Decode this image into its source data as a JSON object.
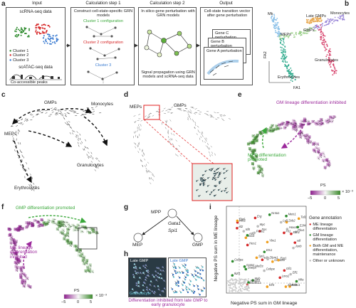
{
  "panel_a": {
    "label": "a",
    "headers": [
      "Input",
      "Calculation step 1",
      "Calculation step 2",
      "Output"
    ],
    "input_title": "scRNA-seq data",
    "clusters": [
      "Cluster 1",
      "Cluster 2",
      "Cluster 3"
    ],
    "cluster_colors": [
      "#2e8b2e",
      "#d62728",
      "#3b7bd1"
    ],
    "atac_title": "scATAC-seq data",
    "peaks_label": "Co-accessible peaks",
    "step1_title": "Construct cell-state-specific GRN models",
    "configs": [
      "Cluster 1 configuration",
      "Cluster 2 configuration",
      "Cluster 3"
    ],
    "step2_title": "In silico gene perturbation with GRN models",
    "step2_caption": "Signal propagation using GRN models and scRNA-seq data",
    "output_title": "Cell-state transition vector after gene perturbation",
    "perturbations": [
      "Gene C perturbation",
      "Gene B perturbation",
      "Gene A perturbation"
    ]
  },
  "panel_b": {
    "label": "b",
    "populations": [
      "Mk",
      "Late GMPs",
      "Monocytes",
      "MEPs",
      "GMPs",
      "Granulocytes",
      "Erythrocytes"
    ],
    "axis_x": "FA1",
    "axis_y": "FA2"
  },
  "panel_c": {
    "label": "c",
    "populations": [
      "GMPs",
      "Monocytes",
      "MEPs",
      "Granulocytes",
      "Erythrocytes"
    ]
  },
  "panel_d": {
    "label": "d",
    "populations": [
      "MEPs",
      "GMPs"
    ]
  },
  "panel_e": {
    "label": "e",
    "annotation_top": "GM lineage differentiation inhibited",
    "annotation_bottom": "MEP differentiation promoted",
    "ps_label": "PS",
    "ticks": [
      "−5",
      "0",
      "5"
    ],
    "exponent": "× 10⁻³"
  },
  "panel_f": {
    "label": "f",
    "annotation_top": "GMP differentiation promoted",
    "annotation_bottom": "ME lineage differentiation inhibited",
    "ps_label": "PS",
    "ticks": [
      "−5",
      "0",
      "5"
    ],
    "exponent": "× 10⁻³"
  },
  "panel_g": {
    "label": "g",
    "root": "MPP",
    "gene_a": "Gata1",
    "gene_b": "Spi1",
    "left": "MEP",
    "right": "GMP"
  },
  "panel_h": {
    "label": "h",
    "titles": [
      "Late GMP",
      "Late GMP"
    ],
    "bottom_label": "Granulocyte",
    "caption": "Differentiation inhibited from late GMP to early granulocyte"
  },
  "panel_i": {
    "label": "i",
    "xlabel": "Negative PS sum in GM lineage",
    "ylabel": "Negative PS sum in ME lineage",
    "legend_title": "Gene annotation",
    "legend": [
      {
        "label": "ME lineage differentiation",
        "color": "#d62728"
      },
      {
        "label": "GM lineage differentiation",
        "color": "#2e8b2e"
      },
      {
        "label": "Both GM and ME differentiation, maintenance",
        "color": "#f0a020"
      },
      {
        "label": "Other or unknown",
        "color": "#bbbbbb"
      }
    ],
    "x_ticks": [
      "0",
      "0.05",
      "0.10",
      "0.15",
      "0.20"
    ],
    "y_ticks": [
      "0",
      "0.05",
      "0.10",
      "0.15",
      "0.20"
    ],
    "genes": [
      "Klf1",
      "Gata1",
      "Tal1",
      "Zfpm1",
      "Fli1",
      "Cebpa",
      "Spi1",
      "Irf8",
      "Gfi1",
      "Myb",
      "Runx1",
      "Cebpe",
      "Lmo2",
      "Ikzf1",
      "Klf4",
      "Elf1",
      "Nfe2",
      "Stat5a",
      "Etv6",
      "Myc",
      "Hlf",
      "Meis1",
      "Sox4",
      "Pbx1",
      "Smarcc1",
      "Nfia",
      "Cbfa2t3",
      "Hoxa9",
      "Ezh2",
      "Hmgb3",
      "Zeb2",
      "Mef2c",
      "Hes1",
      "Nr4a1",
      "Egr1",
      "Junb",
      "Fos",
      "Atf4",
      "Ybx1",
      "Lyl1",
      "Erg",
      "Ets1",
      "Zfp638",
      "Foxo1",
      "Id2",
      "E2f4"
    ]
  }
}
